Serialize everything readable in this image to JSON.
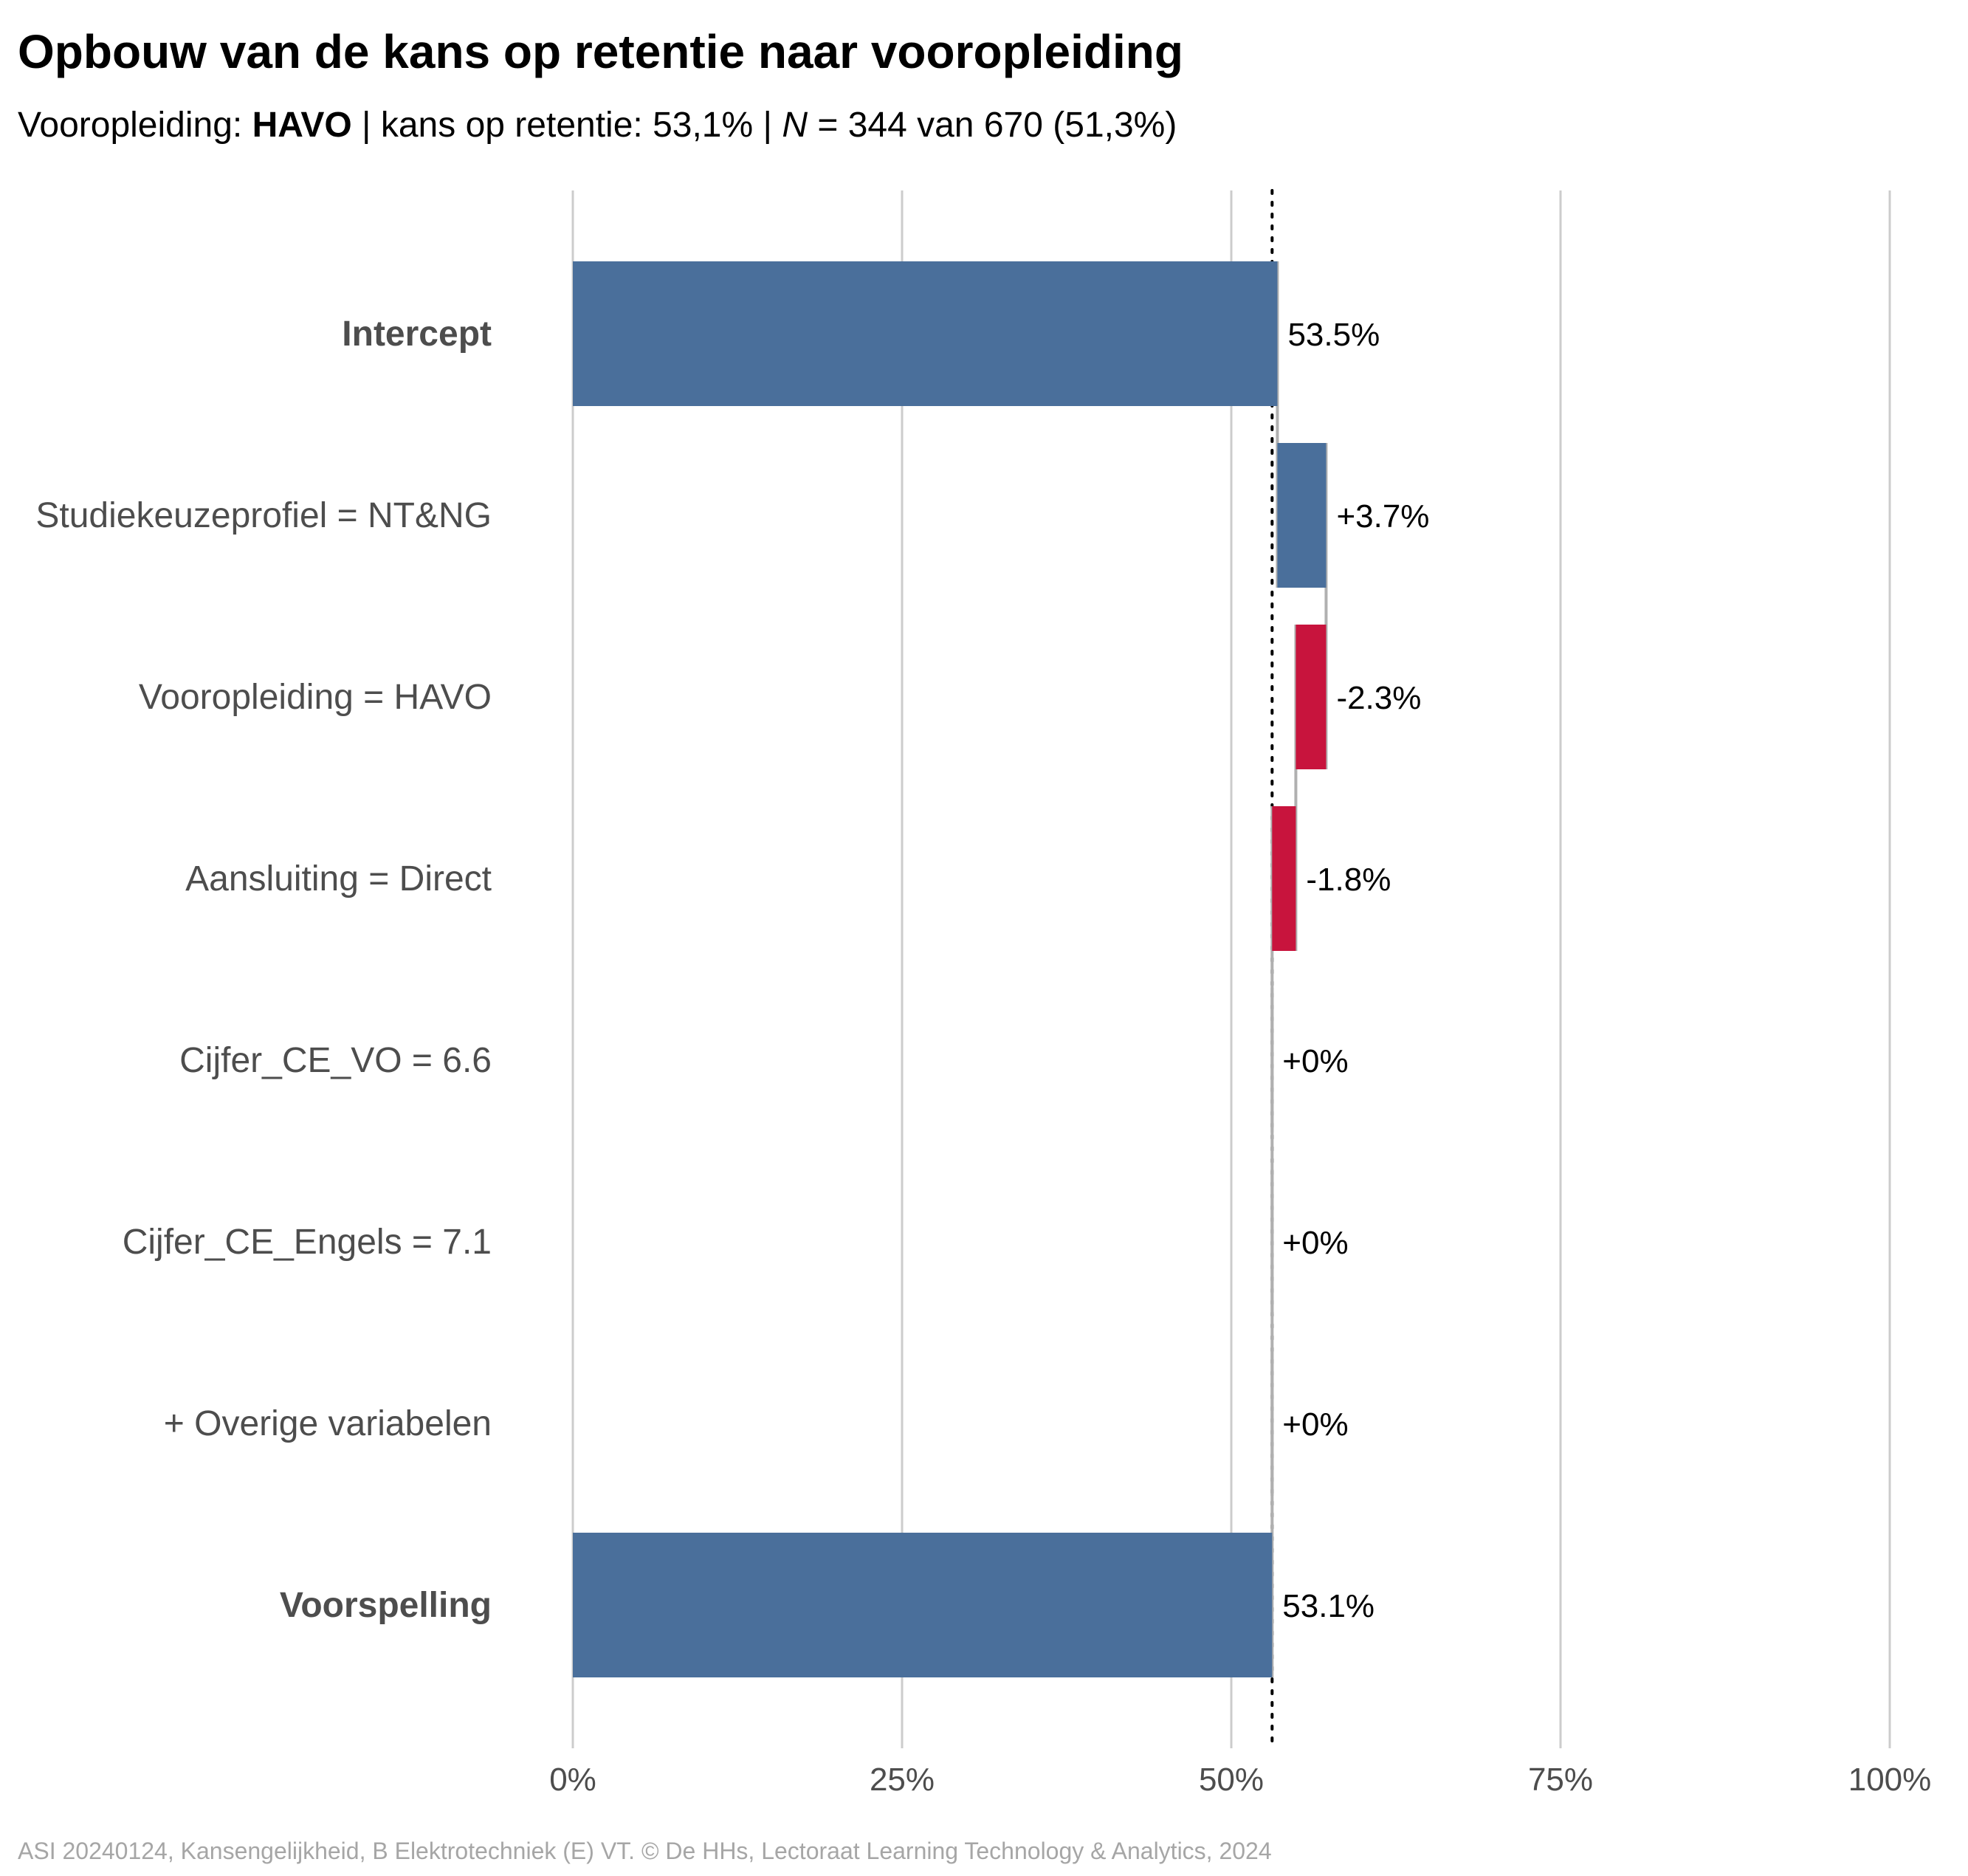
{
  "title": "Opbouw van de kans op retentie naar vooropleiding",
  "subtitle": {
    "prefix": "Vooropleiding: ",
    "group": "HAVO",
    "middle": " | kans op retentie: 53,1% | ",
    "n_symbol": "N",
    "suffix": " = 344 van 670 (51,3%)"
  },
  "caption": "ASI 20240124, Kansengelijkheid, B Elektrotechniek (E) VT. © De HHs, Lectoraat Learning Technology & Analytics, 2024",
  "colors": {
    "positive": "#4a6f9b",
    "negative": "#c8143d",
    "grid": "#cccccc",
    "connector": "#b0b0b0",
    "reference_line": "#000000"
  },
  "chart_data": {
    "type": "bar",
    "subtype": "waterfall",
    "orientation": "horizontal",
    "categories": [
      "Intercept",
      "Studiekeuzeprofiel = NT&NG",
      "Vooropleiding = HAVO",
      "Aansluiting = Direct",
      "Cijfer_CE_VO = 6.6",
      "Cijfer_CE_Engels = 7.1",
      "+ Overige variabelen",
      "Voorspelling"
    ],
    "bold_categories": [
      "Intercept",
      "Voorspelling"
    ],
    "values": [
      53.5,
      3.7,
      -2.3,
      -1.8,
      0,
      0,
      0,
      53.1
    ],
    "kinds": [
      "total",
      "delta",
      "delta",
      "delta",
      "delta",
      "delta",
      "delta",
      "total"
    ],
    "data_labels": [
      "53.5%",
      "+3.7%",
      "-2.3%",
      "-1.8%",
      "+0%",
      "+0%",
      "+0%",
      "53.1%"
    ],
    "reference_line": 53.1,
    "xlim": [
      0,
      100
    ],
    "xticks": [
      0,
      25,
      50,
      75,
      100
    ],
    "xtick_labels": [
      "0%",
      "25%",
      "50%",
      "75%",
      "100%"
    ],
    "xlabel": "",
    "ylabel": "",
    "grid": "vertical"
  }
}
